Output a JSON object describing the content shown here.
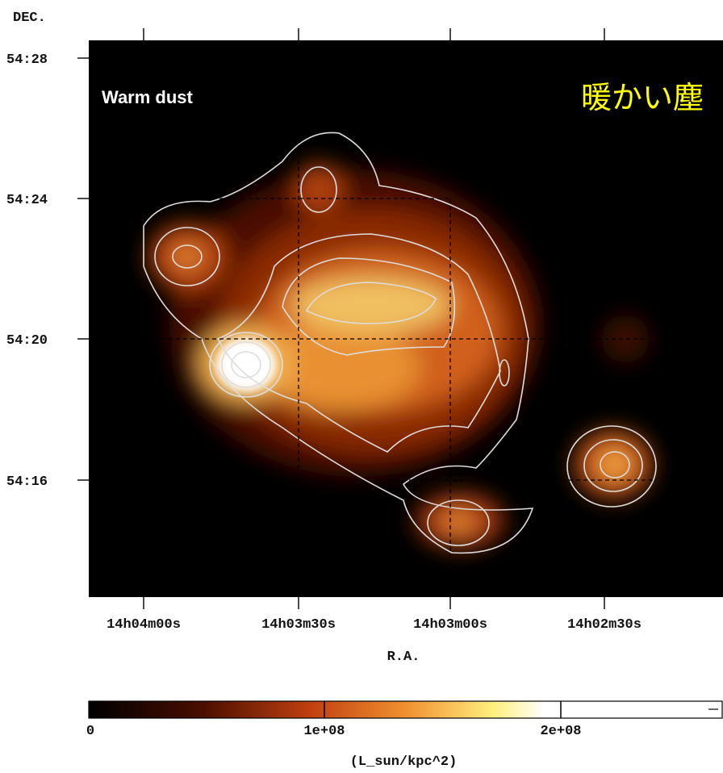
{
  "figure": {
    "y_axis_label": "DEC.",
    "y_ticks": [
      "54:28",
      "54:24",
      "54:20",
      "54:16"
    ],
    "x_ticks": [
      "14h04m00s",
      "14h03m30s",
      "14h03m00s",
      "14h02m30s"
    ],
    "x_axis_label": "R.A.",
    "panel_label": "Warm dust",
    "title_ja": "暖かい塵",
    "colorbar": {
      "ticks": [
        "0",
        "1e+08",
        "2e+08"
      ],
      "unit": "(L_sun/kpc^2)"
    }
  }
}
